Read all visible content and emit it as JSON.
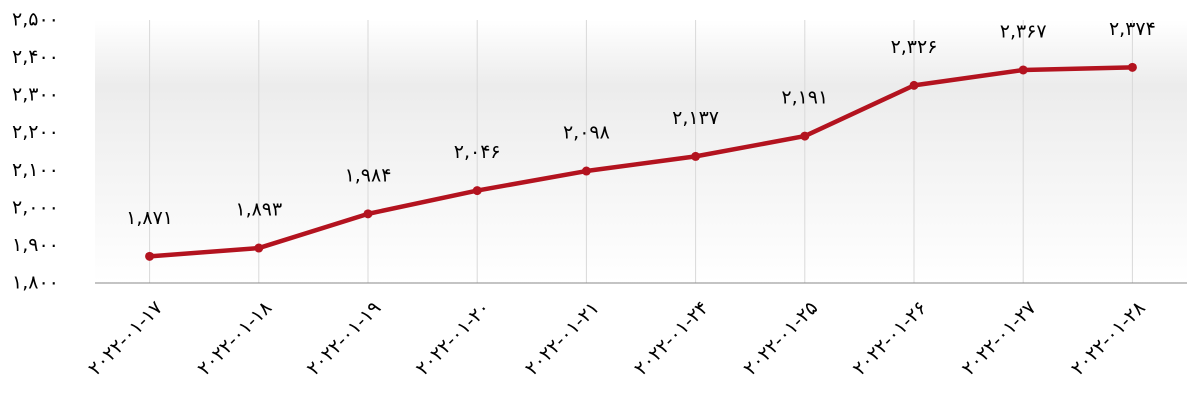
{
  "chart_data": {
    "type": "line",
    "categories": [
      "۲۰۲۲-۰۱-۱۷",
      "۲۰۲۲-۰۱-۱۸",
      "۲۰۲۲-۰۱-۱۹",
      "۲۰۲۲-۰۱-۲۰",
      "۲۰۲۲-۰۱-۲۱",
      "۲۰۲۲-۰۱-۲۴",
      "۲۰۲۲-۰۱-۲۵",
      "۲۰۲۲-۰۱-۲۶",
      "۲۰۲۲-۰۱-۲۷",
      "۲۰۲۲-۰۱-۲۸"
    ],
    "values": [
      1871,
      1893,
      1984,
      2046,
      2098,
      2137,
      2191,
      2326,
      2367,
      2374
    ],
    "value_labels": [
      "۱,۸۷۱",
      "۱,۸۹۳",
      "۱,۹۸۴",
      "۲,۰۴۶",
      "۲,۰۹۸",
      "۲,۱۳۷",
      "۲,۱۹۱",
      "۲,۳۲۶",
      "۲,۳۶۷",
      "۲,۳۷۴"
    ],
    "color": "#b3131f",
    "ylim": [
      1800,
      2500
    ],
    "yticks": [
      {
        "value": 1800,
        "label": "۱,۸۰۰"
      },
      {
        "value": 1900,
        "label": "۱,۹۰۰"
      },
      {
        "value": 2000,
        "label": "۲,۰۰۰"
      },
      {
        "value": 2100,
        "label": "۲,۱۰۰"
      },
      {
        "value": 2200,
        "label": "۲,۲۰۰"
      },
      {
        "value": 2300,
        "label": "۲,۳۰۰"
      },
      {
        "value": 2400,
        "label": "۲,۴۰۰"
      },
      {
        "value": 2500,
        "label": "۲,۵۰۰"
      }
    ],
    "grid": "x"
  }
}
